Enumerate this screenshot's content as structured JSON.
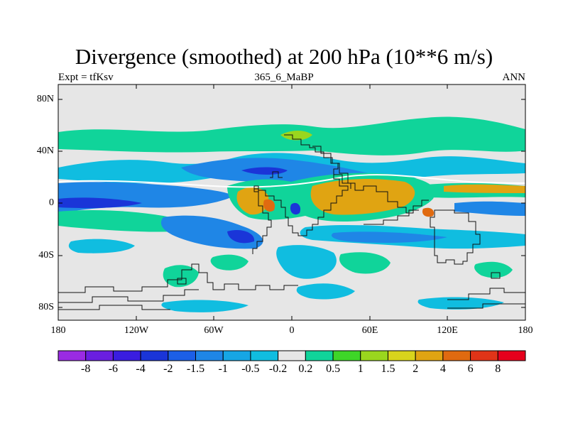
{
  "title": "Divergence (smoothed) at 200 hPa (10**6 m/s)",
  "subtitle_left": "Expt = tfKsv",
  "subtitle_center": "365_6_MaBP",
  "subtitle_right": "ANN",
  "lat_labels": [
    "80N",
    "40N",
    "0",
    "40S",
    "80S"
  ],
  "lon_labels": [
    "180",
    "120W",
    "60W",
    "0",
    "60E",
    "120E",
    "180"
  ],
  "colorbar": {
    "labels": [
      "-8",
      "-6",
      "-4",
      "-2",
      "-1.5",
      "-1",
      "-0.5",
      "-0.2",
      "0.2",
      "0.5",
      "1",
      "1.5",
      "2",
      "4",
      "6",
      "8"
    ],
    "colors": [
      "#9a2be2",
      "#6a1fe0",
      "#3a1de0",
      "#1a35d8",
      "#1c5fe6",
      "#1f86e6",
      "#16a6e4",
      "#10bde0",
      "#e6e6e6",
      "#10d49a",
      "#3ed628",
      "#9ad61e",
      "#d8d41c",
      "#e0a412",
      "#e06a10",
      "#e03418",
      "#e6001c"
    ]
  },
  "colors": {
    "background": "#e6e6e6",
    "coast": "#111111"
  }
}
